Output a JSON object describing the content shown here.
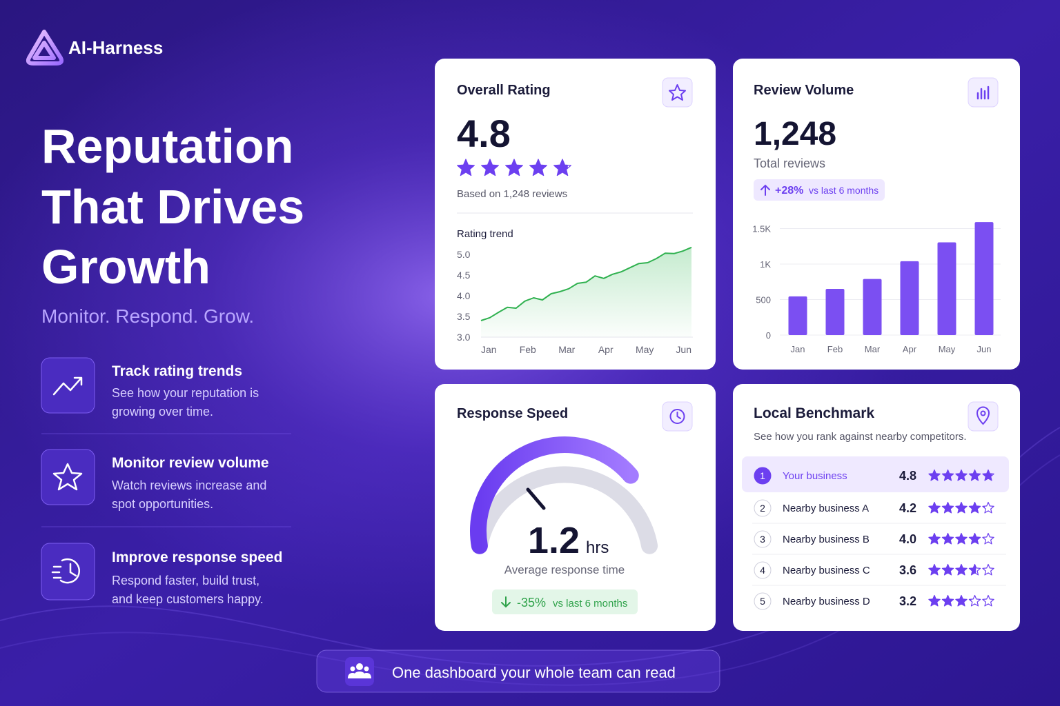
{
  "brand": "AI-Harness",
  "hero": {
    "title_lines": [
      "Reputation",
      "That Drives",
      "Growth"
    ],
    "tagline": "Monitor. Respond. Grow."
  },
  "features": [
    {
      "title": "Track rating trends",
      "description_lines": [
        "See how your reputation is",
        "growing over time."
      ]
    },
    {
      "title": "Monitor review volume",
      "description_lines": [
        "Watch reviews increase and",
        "spot opportunities."
      ]
    },
    {
      "title": "Improve response speed",
      "description_lines": [
        "Respond faster, build trust,",
        "and keep customers happy."
      ]
    }
  ],
  "overall_rating": {
    "title": "Overall Rating",
    "value": 4.8,
    "based_on": "Based on 1,248 reviews",
    "chart": {
      "type": "line",
      "title": "Rating trend",
      "x": [
        0.8,
        1.025,
        1.25,
        1.475,
        1.7,
        1.925,
        2.15,
        2.375,
        2.6,
        2.825,
        3.05,
        3.275,
        3.5,
        3.725,
        3.95,
        4.175,
        4.4,
        4.625,
        4.85,
        5.075,
        5.3,
        5.525,
        5.75,
        5.975,
        6.2
      ],
      "values": [
        3.4,
        3.47,
        3.6,
        3.72,
        3.7,
        3.87,
        3.95,
        3.9,
        4.05,
        4.1,
        4.17,
        4.3,
        4.33,
        4.48,
        4.42,
        4.52,
        4.58,
        4.68,
        4.78,
        4.8,
        4.9,
        5.03,
        5.02,
        5.08,
        5.17
      ],
      "color": "#2fb14f",
      "xlim": [
        0.8,
        6.2
      ],
      "xticks": [
        {
          "value": 1,
          "label": "Jan"
        },
        {
          "value": 2,
          "label": "Feb"
        },
        {
          "value": 3,
          "label": "Mar"
        },
        {
          "value": 4,
          "label": "Apr"
        },
        {
          "value": 5,
          "label": "May"
        },
        {
          "value": 6,
          "label": "Jun"
        }
      ],
      "ylim": [
        3.0,
        5.2
      ],
      "yticks": [
        {
          "value": 3,
          "label": "3.0"
        },
        3.5,
        {
          "value": 4,
          "label": "4.0"
        },
        4.5,
        {
          "value": 5,
          "label": "5.0"
        }
      ]
    }
  },
  "review_volume": {
    "title": "Review Volume",
    "value": "1,248",
    "subtitle": "Total reviews",
    "change": "+28%",
    "change_note": "vs last 6 months",
    "chart": {
      "type": "bar",
      "categories": [
        "Jan",
        "Feb",
        "Mar",
        "Apr",
        "May",
        "Jun"
      ],
      "values": [
        545,
        650,
        790,
        1040,
        1305,
        1590
      ],
      "color": "#7b4ff2",
      "ylim": [
        0,
        1650
      ],
      "yticks": [
        0,
        500,
        {
          "value": 1000,
          "label": "1K"
        },
        {
          "value": 1500,
          "label": "1.5K"
        }
      ],
      "grid": true
    }
  },
  "response_speed": {
    "title": "Response Speed",
    "value": "1.2",
    "unit": "hrs",
    "caption": "Average response time",
    "change": "-35%",
    "change_note": "vs last 6 months"
  },
  "local_benchmark": {
    "title": "Local Benchmark",
    "subtitle": "See how you rank against nearby competitors.",
    "rows": [
      {
        "rank": 1,
        "name": "Your business",
        "rating": 4.8
      },
      {
        "rank": 2,
        "name": "Nearby business A",
        "rating": 4.2
      },
      {
        "rank": 3,
        "name": "Nearby business B",
        "rating": {
          "value": 4.0,
          "label": "4.0"
        }
      },
      {
        "rank": 4,
        "name": "Nearby business C",
        "rating": 3.6
      },
      {
        "rank": 5,
        "name": "Nearby business D",
        "rating": 3.2
      }
    ]
  },
  "footer": "One dashboard your whole team can read"
}
